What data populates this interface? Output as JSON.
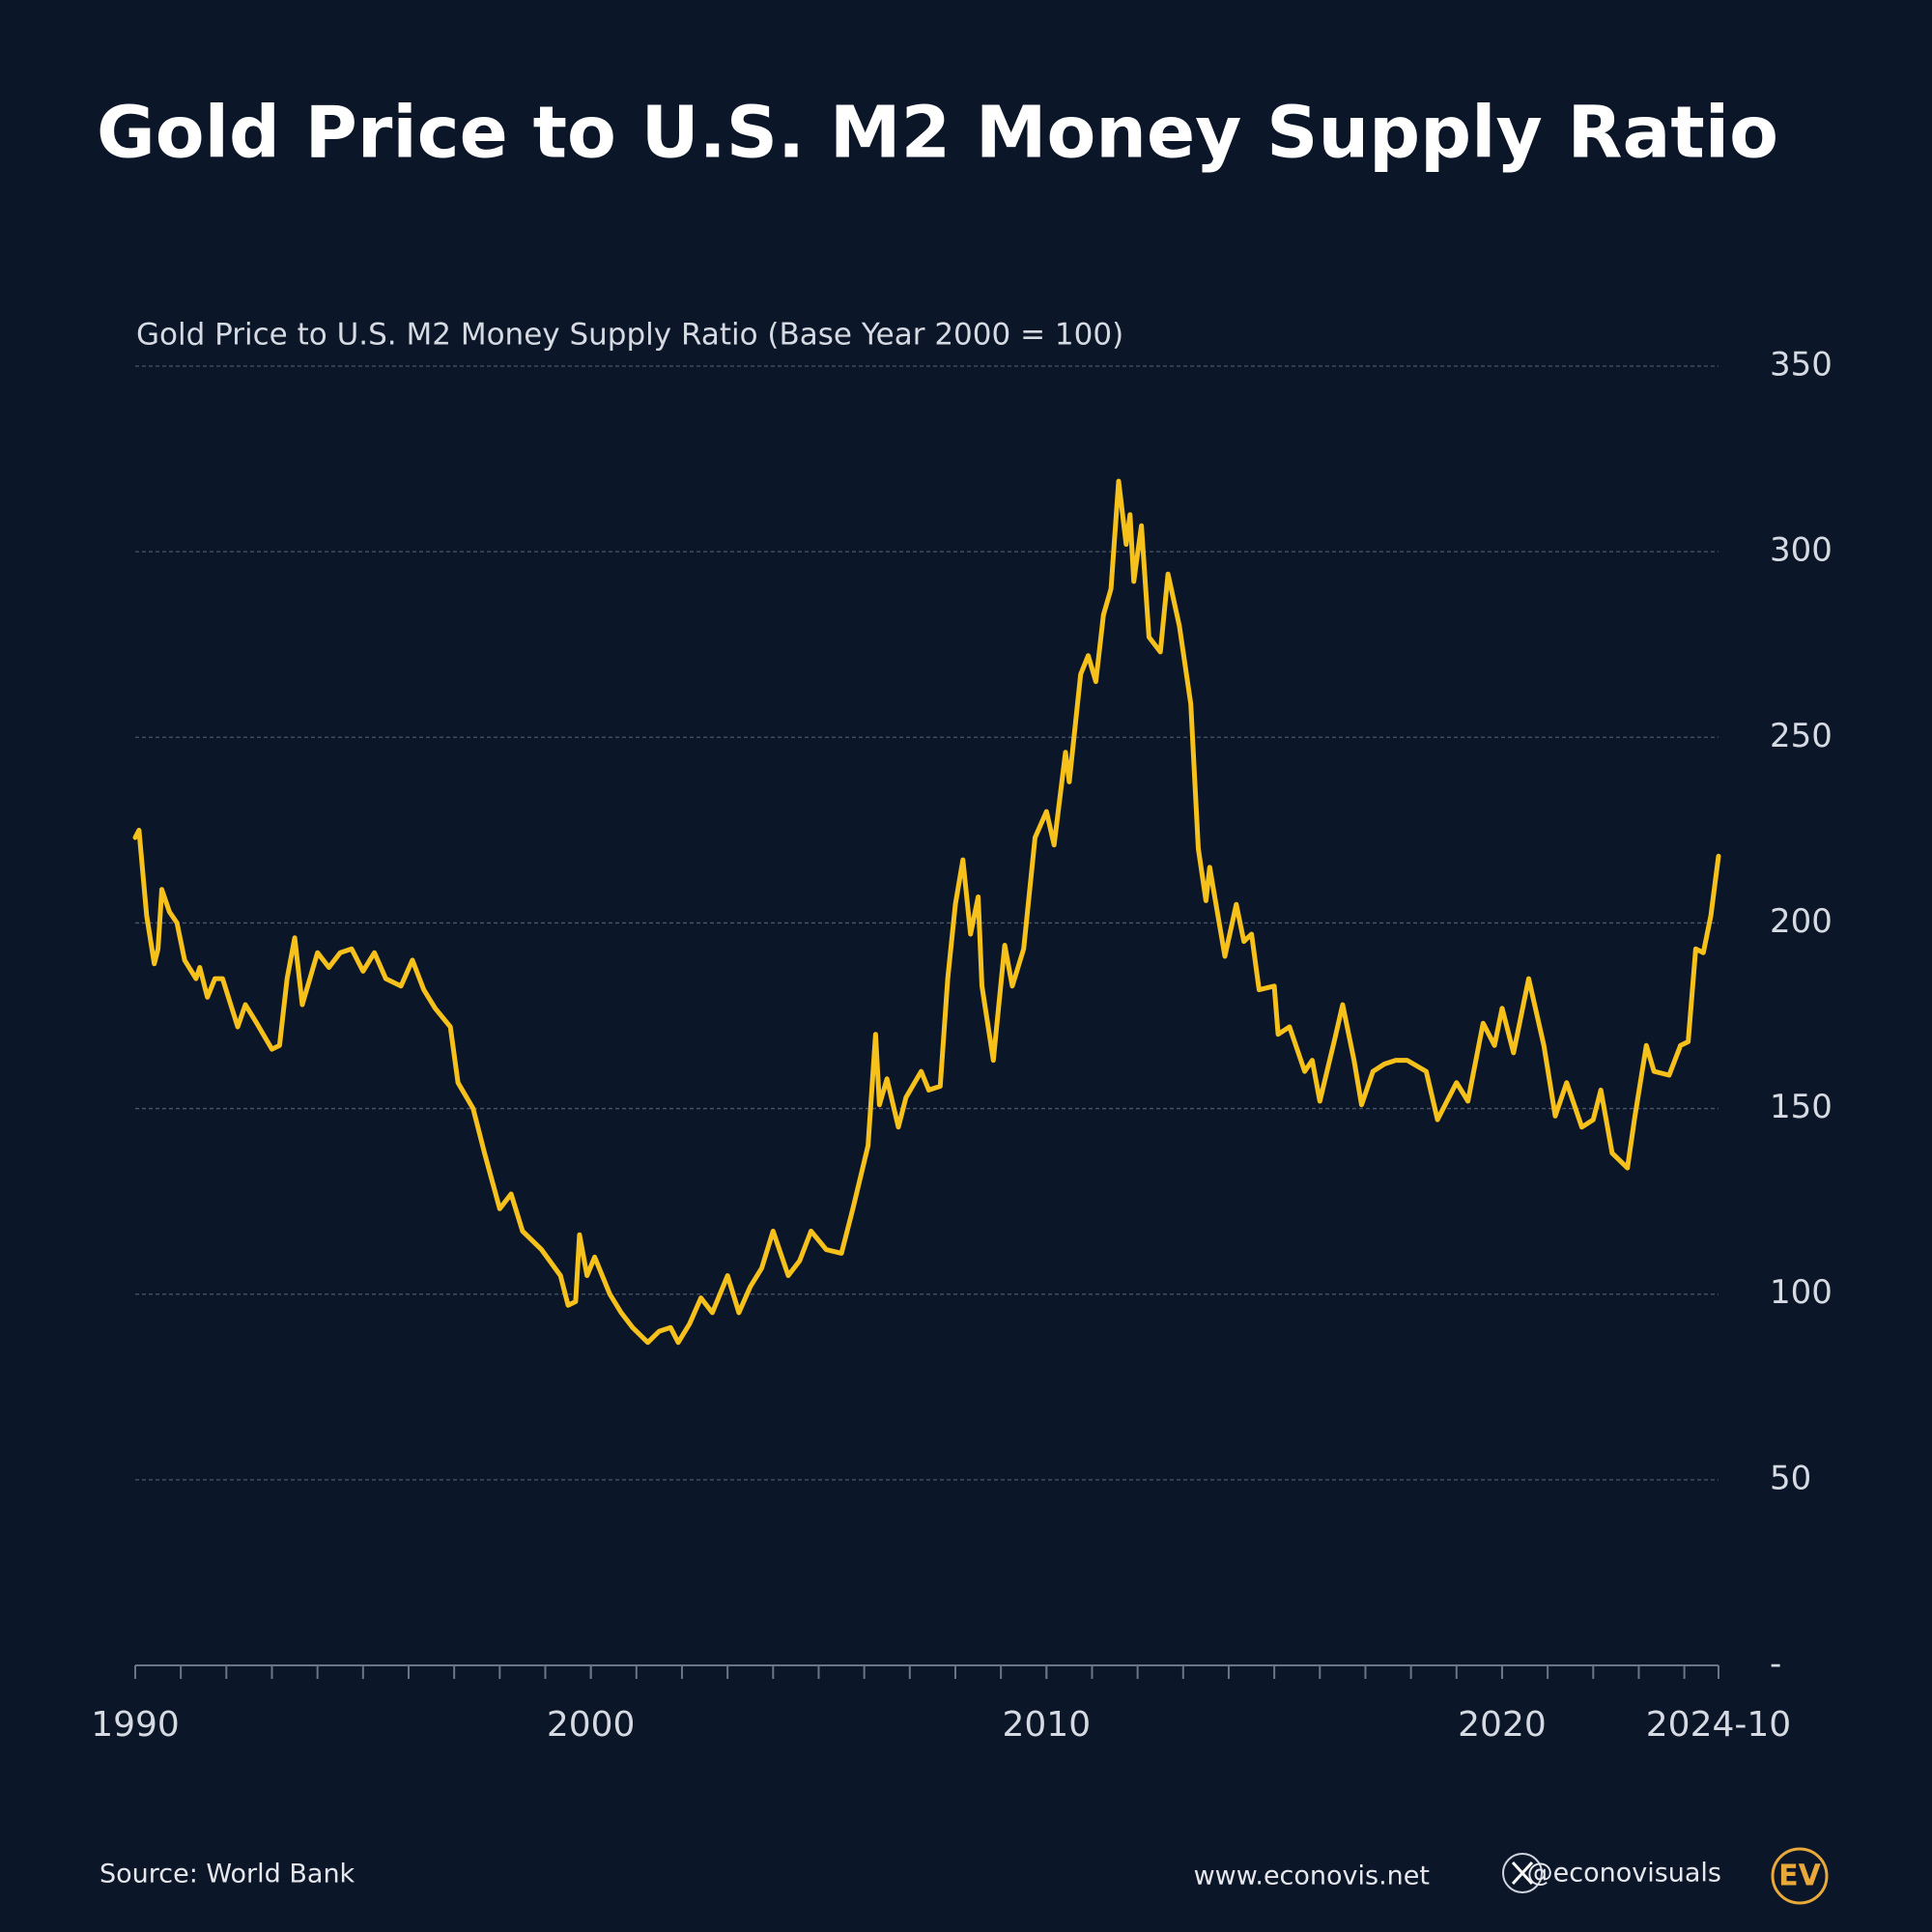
{
  "chart_data": {
    "type": "line",
    "title": "Gold Price to U.S. M2 Money Supply Ratio",
    "subtitle": "Gold Price to U.S. M2 Money Supply Ratio (Base Year 2000 = 100)",
    "source": "Source: World Bank",
    "website": "www.econovis.net",
    "handle": "@econovisuals",
    "logo": "EV",
    "x": [
      "1990-01",
      "1990-02",
      "1990-04",
      "1990-06",
      "1990-07",
      "1990-08",
      "1990-10",
      "1990-12",
      "1991-02",
      "1991-05",
      "1991-06",
      "1991-08",
      "1991-10",
      "1991-12",
      "1992-04",
      "1992-06",
      "1992-09",
      "1993-01",
      "1993-03",
      "1993-05",
      "1993-07",
      "1993-09",
      "1994-01",
      "1994-04",
      "1994-07",
      "1994-10",
      "1995-01",
      "1995-04",
      "1995-07",
      "1995-11",
      "1996-02",
      "1996-05",
      "1996-08",
      "1996-12",
      "1997-02",
      "1997-06",
      "1997-09",
      "1998-01",
      "1998-04",
      "1998-07",
      "1998-12",
      "1999-05",
      "1999-07",
      "1999-09",
      "1999-10",
      "1999-12",
      "2000-02",
      "2000-06",
      "2000-09",
      "2000-12",
      "2001-04",
      "2001-07",
      "2001-10",
      "2001-12",
      "2002-03",
      "2002-06",
      "2002-09",
      "2003-01",
      "2003-04",
      "2003-07",
      "2003-10",
      "2004-01",
      "2004-05",
      "2004-08",
      "2004-11",
      "2005-03",
      "2005-07",
      "2005-10",
      "2006-02",
      "2006-04",
      "2006-05",
      "2006-07",
      "2006-10",
      "2006-12",
      "2007-04",
      "2007-06",
      "2007-09",
      "2007-11",
      "2008-01",
      "2008-03",
      "2008-05",
      "2008-07",
      "2008-08",
      "2008-11",
      "2009-02",
      "2009-04",
      "2009-07",
      "2009-10",
      "2010-01",
      "2010-03",
      "2010-06",
      "2010-07",
      "2010-10",
      "2010-12",
      "2011-02",
      "2011-04",
      "2011-06",
      "2011-08",
      "2011-10",
      "2011-11",
      "2011-12",
      "2012-02",
      "2012-04",
      "2012-07",
      "2012-09",
      "2012-12",
      "2013-03",
      "2013-05",
      "2013-07",
      "2013-08",
      "2013-12",
      "2014-03",
      "2014-05",
      "2014-07",
      "2014-09",
      "2015-01",
      "2015-02",
      "2015-05",
      "2015-09",
      "2015-11",
      "2016-01",
      "2016-05",
      "2016-07",
      "2016-10",
      "2016-12",
      "2017-03",
      "2017-06",
      "2017-09",
      "2017-12",
      "2018-05",
      "2018-08",
      "2019-01",
      "2019-04",
      "2019-08",
      "2019-11",
      "2020-01",
      "2020-04",
      "2020-08",
      "2020-12",
      "2021-03",
      "2021-06",
      "2021-10",
      "2022-01",
      "2022-03",
      "2022-06",
      "2022-10",
      "2022-12",
      "2023-03",
      "2023-05",
      "2023-09",
      "2023-12",
      "2024-02",
      "2024-04",
      "2024-06",
      "2024-08",
      "2024-10"
    ],
    "series": [
      {
        "name": "Gold Price to U.S. M2 Money Supply Ratio",
        "color": "#f5c11a",
        "values": [
          223,
          225,
          202,
          189,
          193,
          209,
          203,
          200,
          190,
          185,
          188,
          180,
          185,
          185,
          172,
          178,
          173,
          166,
          167,
          185,
          196,
          178,
          192,
          188,
          192,
          193,
          187,
          192,
          185,
          183,
          190,
          182,
          177,
          172,
          157,
          150,
          138,
          123,
          127,
          117,
          112,
          105,
          97,
          98,
          116,
          105,
          110,
          100,
          95,
          91,
          87,
          90,
          91,
          87,
          92,
          99,
          95,
          105,
          95,
          102,
          107,
          117,
          105,
          109,
          117,
          112,
          111,
          123,
          140,
          170,
          151,
          158,
          145,
          153,
          160,
          155,
          156,
          185,
          205,
          217,
          197,
          207,
          183,
          163,
          194,
          183,
          193,
          223,
          230,
          221,
          246,
          238,
          267,
          272,
          265,
          283,
          290,
          319,
          302,
          310,
          292,
          307,
          277,
          273,
          294,
          280,
          259,
          220,
          206,
          215,
          191,
          205,
          195,
          197,
          182,
          183,
          170,
          172,
          160,
          163,
          152,
          169,
          178,
          163,
          151,
          160,
          162,
          163,
          163,
          160,
          147,
          157,
          152,
          173,
          167,
          177,
          165,
          185,
          167,
          148,
          157,
          145,
          147,
          155,
          138,
          134,
          148,
          167,
          160,
          159,
          167,
          168,
          193,
          192,
          202,
          218
        ]
      }
    ],
    "xlim": [
      "1990-01",
      "2024-10"
    ],
    "xticks": [
      "1990",
      "2000",
      "2010",
      "2020",
      "2024-10"
    ],
    "ylim": [
      0,
      350
    ],
    "yticks": [
      {
        "value": 0,
        "label": "-"
      },
      50,
      100,
      150,
      200,
      250,
      300,
      350
    ],
    "grid": true
  }
}
